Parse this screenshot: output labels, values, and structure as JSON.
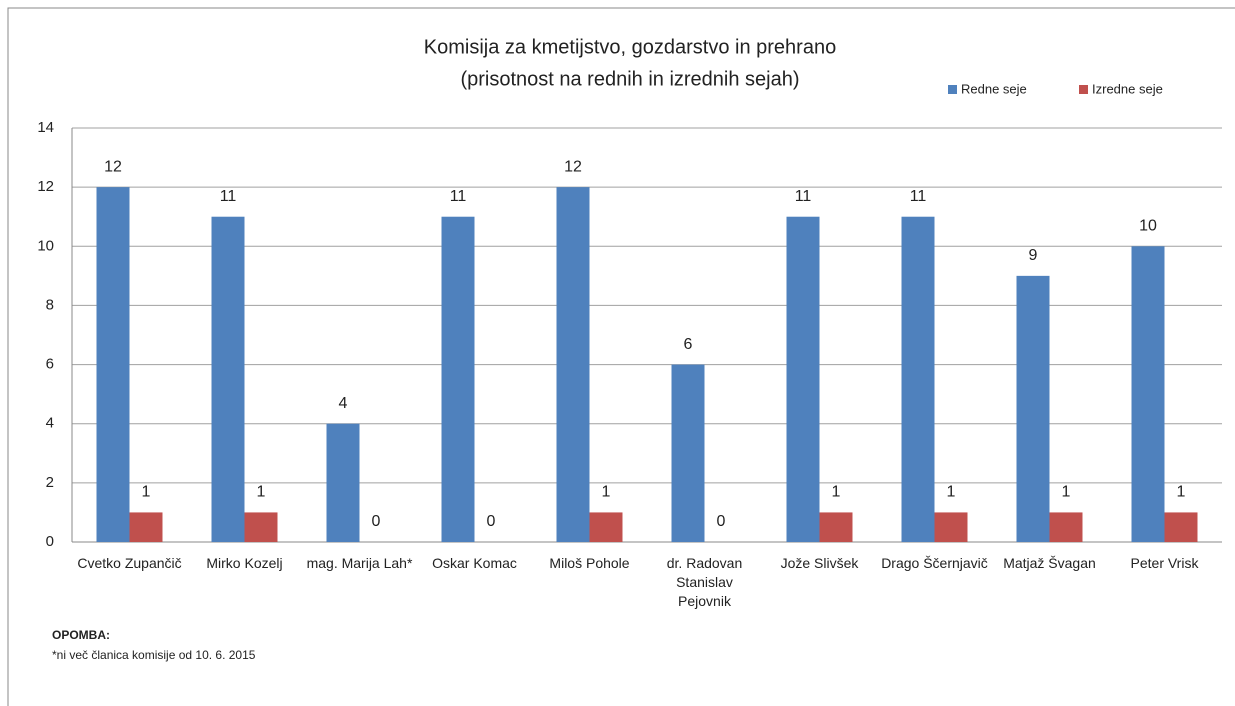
{
  "chart_data": {
    "type": "bar",
    "title": "Komisija za kmetijstvo, gozdarstvo in prehrano",
    "subtitle": "(prisotnost na rednih in izrednih sejah)",
    "categories": [
      "Cvetko Zupančič",
      "Mirko Kozelj",
      "mag. Marija Lah*",
      "Oskar Komac",
      "Miloš Pohole",
      "dr. Radovan Stanislav Pejovnik",
      "Jože Slivšek",
      "Drago Ščernjavič",
      "Matjaž Švagan",
      "Peter Vrisk"
    ],
    "series": [
      {
        "name": "Redne seje",
        "color": "#4f81bd",
        "values": [
          12,
          11,
          4,
          11,
          12,
          6,
          11,
          11,
          9,
          10
        ]
      },
      {
        "name": "Izredne seje",
        "color": "#c0504d",
        "values": [
          1,
          1,
          0,
          0,
          1,
          0,
          1,
          1,
          1,
          1
        ]
      }
    ],
    "ylim": [
      0,
      14
    ],
    "yticks": [
      0,
      2,
      4,
      6,
      8,
      10,
      12,
      14
    ],
    "grid": true,
    "legend": "top-right",
    "note_title": "OPOMBA:",
    "note": "*ni več članica komisije od 10. 6. 2015"
  }
}
